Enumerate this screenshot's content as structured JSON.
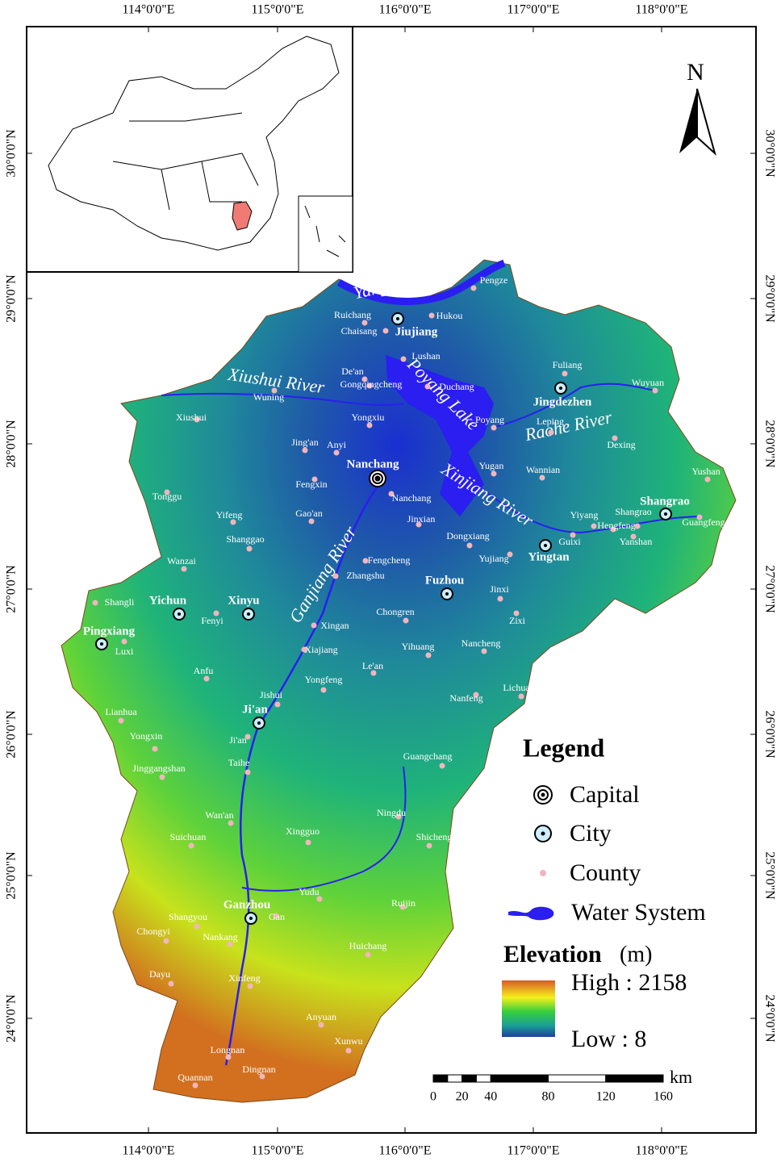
{
  "axes": {
    "top": [
      "114°0'0\"E",
      "115°0'0\"E",
      "116°0'0\"E",
      "117°0'0\"E",
      "118°0'0\"E"
    ],
    "bottom": [
      "114°0'0\"E",
      "115°0'0\"E",
      "116°0'0\"E",
      "117°0'0\"E",
      "118°0'0\"E"
    ],
    "left": [
      "30°0'0\"N",
      "29°0'0\"N",
      "28°0'0\"N",
      "27°0'0\"N",
      "26°0'0\"N",
      "25°0'0\"N",
      "24°0'0\"N"
    ],
    "right": [
      "30°0'0\"N",
      "29°0'0\"N",
      "28°0'0\"N",
      "27°0'0\"N",
      "26°0'0\"N",
      "25°0'0\"N",
      "24°0'0\"N"
    ]
  },
  "north": "N",
  "rivers": [
    "Yangtze River",
    "Xiushui River",
    "Poyang Lake",
    "Raohe River",
    "Xinjiang River",
    "Ganjiang River"
  ],
  "capital": "Nanchang",
  "cities": [
    "Jiujiang",
    "Jingdezhen",
    "Shangrao",
    "Yingtan",
    "Fuzhou",
    "Yichun",
    "Xinyu",
    "Pingxiang",
    "Ji'an",
    "Ganzhou"
  ],
  "counties": [
    "Pengze",
    "Hukou",
    "Ruichang",
    "Chaisang",
    "Lushan",
    "De'an",
    "Gongqingcheng",
    "Duchang",
    "Wuning",
    "Fuliang",
    "Wuyuan",
    "Xiushui",
    "Yongxiu",
    "Poyang",
    "Leping",
    "Dexing",
    "Jing'an",
    "Anyi",
    "Yugan",
    "Wannian",
    "Yushan",
    "Fengxin",
    "Tonggu",
    "Nanchang",
    "Gao'an",
    "Yifeng",
    "Jinxian",
    "Yiyang",
    "Shangrao",
    "Hengfeng",
    "Guangfeng",
    "Dongxiang",
    "Guixi",
    "Yanshan",
    "Shanggao",
    "Fengcheng",
    "Yujiang",
    "Wanzai",
    "Zhangshu",
    "Shangli",
    "Jinxi",
    "Fenyi",
    "Chongren",
    "Zixi",
    "Xingan",
    "Luxi",
    "Yihuang",
    "Nancheng",
    "Xiajiang",
    "Anfu",
    "Le'an",
    "Yongfeng",
    "Nanfeng",
    "Lichuan",
    "Jishui",
    "Lianhua",
    "Yongxin",
    "Ji'an",
    "Guangchang",
    "Jinggangshan",
    "Taihe",
    "Ningdu",
    "Wan'an",
    "Suichuan",
    "Xingguo",
    "Shicheng",
    "Yudu",
    "Ruijin",
    "Shangyou",
    "Gan",
    "Chongyi",
    "Nankang",
    "Huichang",
    "Dayu",
    "Xinfeng",
    "Anyuan",
    "Xunwu",
    "Longnan",
    "Dingnan",
    "Quannan"
  ],
  "legend": {
    "title": "Legend",
    "items": [
      "Capital",
      "City",
      "County",
      "Water System"
    ],
    "elevation_title": "Elevation",
    "elevation_unit": "(m)",
    "high": "High : 2158",
    "low": "Low : 8"
  },
  "scale": {
    "unit": "km",
    "ticks": [
      0,
      20,
      40,
      80,
      120,
      160
    ]
  }
}
